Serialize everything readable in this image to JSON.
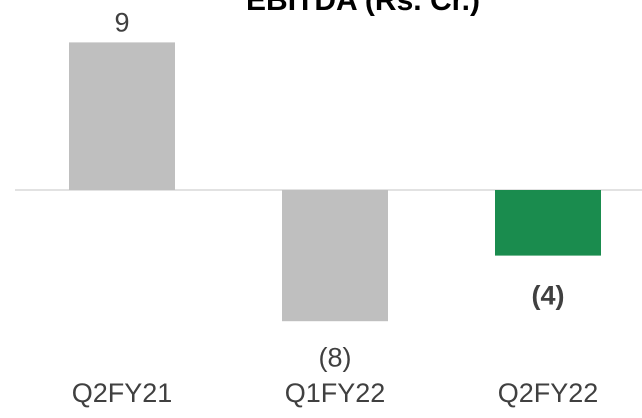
{
  "chart_data": {
    "type": "bar",
    "title": "EBITDA (Rs. Cr.)",
    "categories": [
      "Q2FY21",
      "Q1FY22",
      "Q2FY22"
    ],
    "values": [
      9,
      -8,
      -4
    ],
    "value_labels": [
      "9",
      "(8)",
      "(4)"
    ],
    "colors": [
      "#bfbfbf",
      "#bfbfbf",
      "#1a8c4e"
    ]
  }
}
